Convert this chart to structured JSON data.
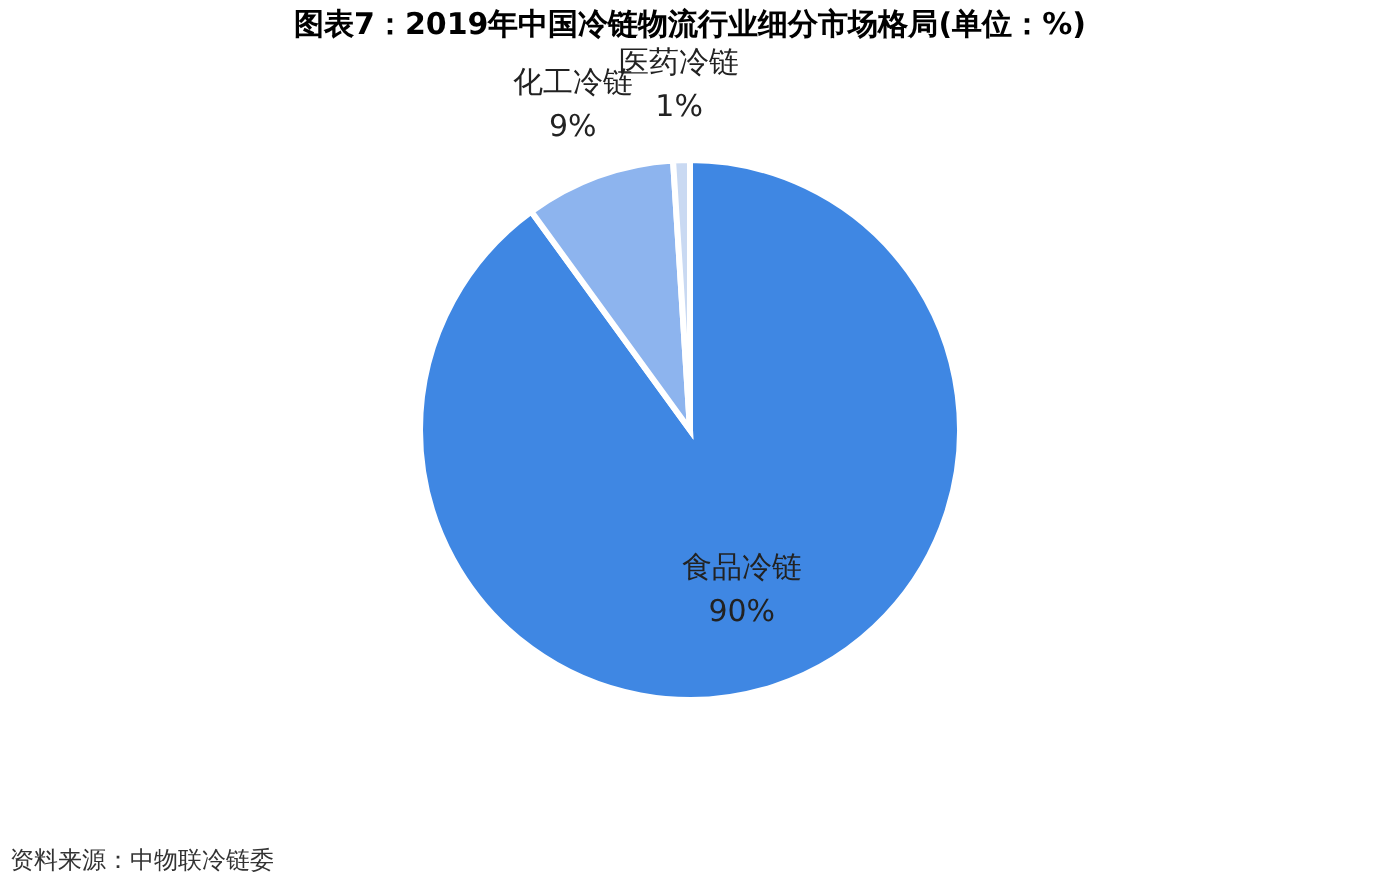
{
  "chart_data": {
    "type": "pie",
    "title": "图表7：2019年中国冷链物流行业细分市场格局(单位：%)",
    "categories": [
      "食品冷链",
      "化工冷链",
      "医药冷链"
    ],
    "values": [
      90,
      9,
      1
    ],
    "value_labels": [
      "90%",
      "9%",
      "1%"
    ],
    "colors": [
      "#3f87e3",
      "#8db4ee",
      "#c9d9f2"
    ],
    "legend": false,
    "annotations": [
      "资料来源：中物联冷链委"
    ]
  }
}
